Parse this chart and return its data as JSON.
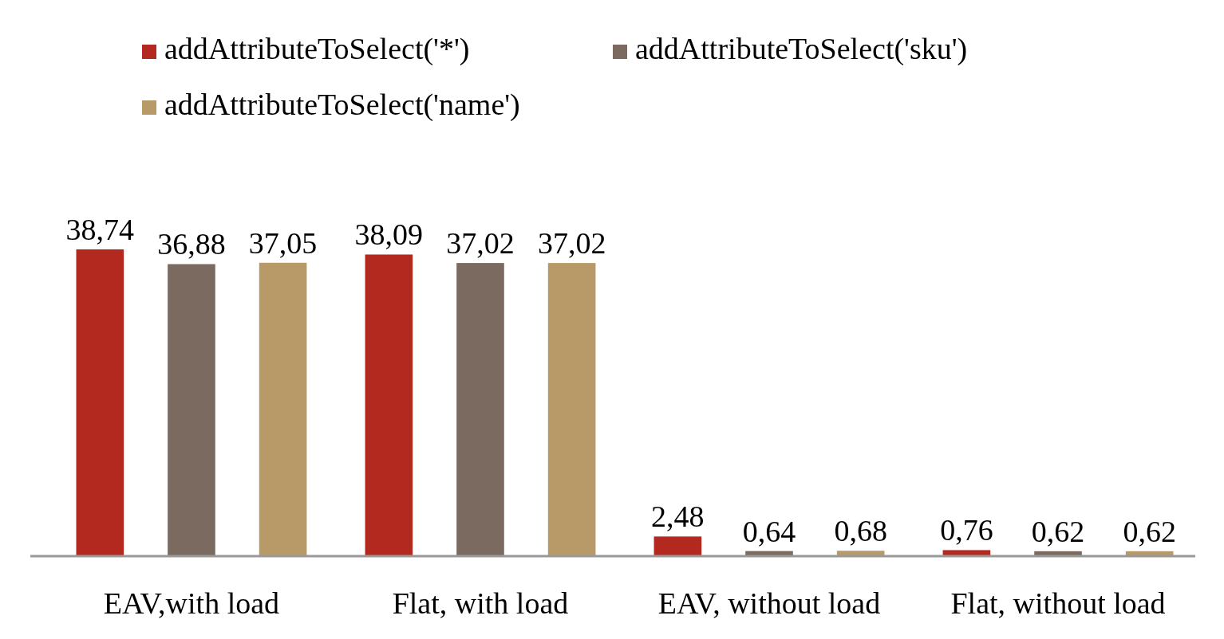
{
  "chart_data": {
    "type": "bar",
    "categories": [
      "EAV,with load",
      "Flat, with load",
      "EAV, without load",
      "Flat, without load"
    ],
    "series": [
      {
        "name": "addAttributeToSelect('*')",
        "color": "#b3291f",
        "values": [
          38.74,
          38.09,
          2.48,
          0.76
        ],
        "value_labels": [
          "38,74",
          "38,09",
          "2,48",
          "0,76"
        ]
      },
      {
        "name": "addAttributeToSelect('sku')",
        "color": "#7a6a5f",
        "values": [
          36.88,
          37.02,
          0.64,
          0.62
        ],
        "value_labels": [
          "36,88",
          "37,02",
          "0,64",
          "0,62"
        ]
      },
      {
        "name": "addAttributeToSelect('name')",
        "color": "#b89a68",
        "values": [
          37.05,
          37.02,
          0.68,
          0.62
        ],
        "value_labels": [
          "37,05",
          "37,02",
          "0,68",
          "0,62"
        ]
      }
    ],
    "legend": "top left"
  }
}
